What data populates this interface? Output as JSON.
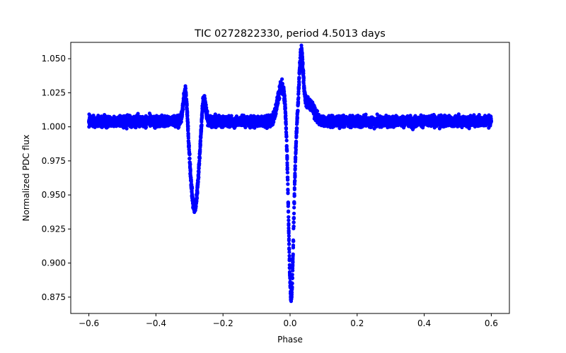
{
  "chart_data": {
    "type": "scatter",
    "title": "TIC 0272822330, period 4.5013 days",
    "xlabel": "Phase",
    "ylabel": "Normalized PDC flux",
    "xlim": [
      -0.654,
      0.654
    ],
    "ylim": [
      0.863,
      1.062
    ],
    "xticks": [
      -0.6,
      -0.4,
      -0.2,
      0.0,
      0.2,
      0.4,
      0.6
    ],
    "xtick_labels": [
      "−0.6",
      "−0.4",
      "−0.2",
      "0.0",
      "0.2",
      "0.4",
      "0.6"
    ],
    "yticks": [
      0.875,
      0.9,
      0.925,
      0.95,
      0.975,
      1.0,
      1.025,
      1.05
    ],
    "ytick_labels": [
      "0.875",
      "0.900",
      "0.925",
      "0.950",
      "0.975",
      "1.000",
      "1.025",
      "1.050"
    ],
    "grid": false,
    "marker_color": "#0000ff",
    "series": [
      {
        "name": "flux",
        "baseline": 1.004,
        "noise": 0.0035,
        "x_range": [
          -0.6,
          0.6
        ],
        "features": [
          {
            "kind": "dip",
            "center": -0.285,
            "depth": 0.064,
            "width": 0.012
          },
          {
            "kind": "peak",
            "center": -0.312,
            "height": 0.027,
            "width": 0.006
          },
          {
            "kind": "peak",
            "center": -0.258,
            "height": 0.021,
            "width": 0.006
          },
          {
            "kind": "dip",
            "center": 0.003,
            "depth": 0.131,
            "width": 0.0075
          },
          {
            "kind": "peak",
            "center": -0.025,
            "height": 0.026,
            "width": 0.012
          },
          {
            "kind": "peak",
            "center": 0.033,
            "height": 0.047,
            "width": 0.006
          },
          {
            "kind": "peak",
            "center": 0.055,
            "height": 0.014,
            "width": 0.015
          }
        ]
      }
    ]
  }
}
